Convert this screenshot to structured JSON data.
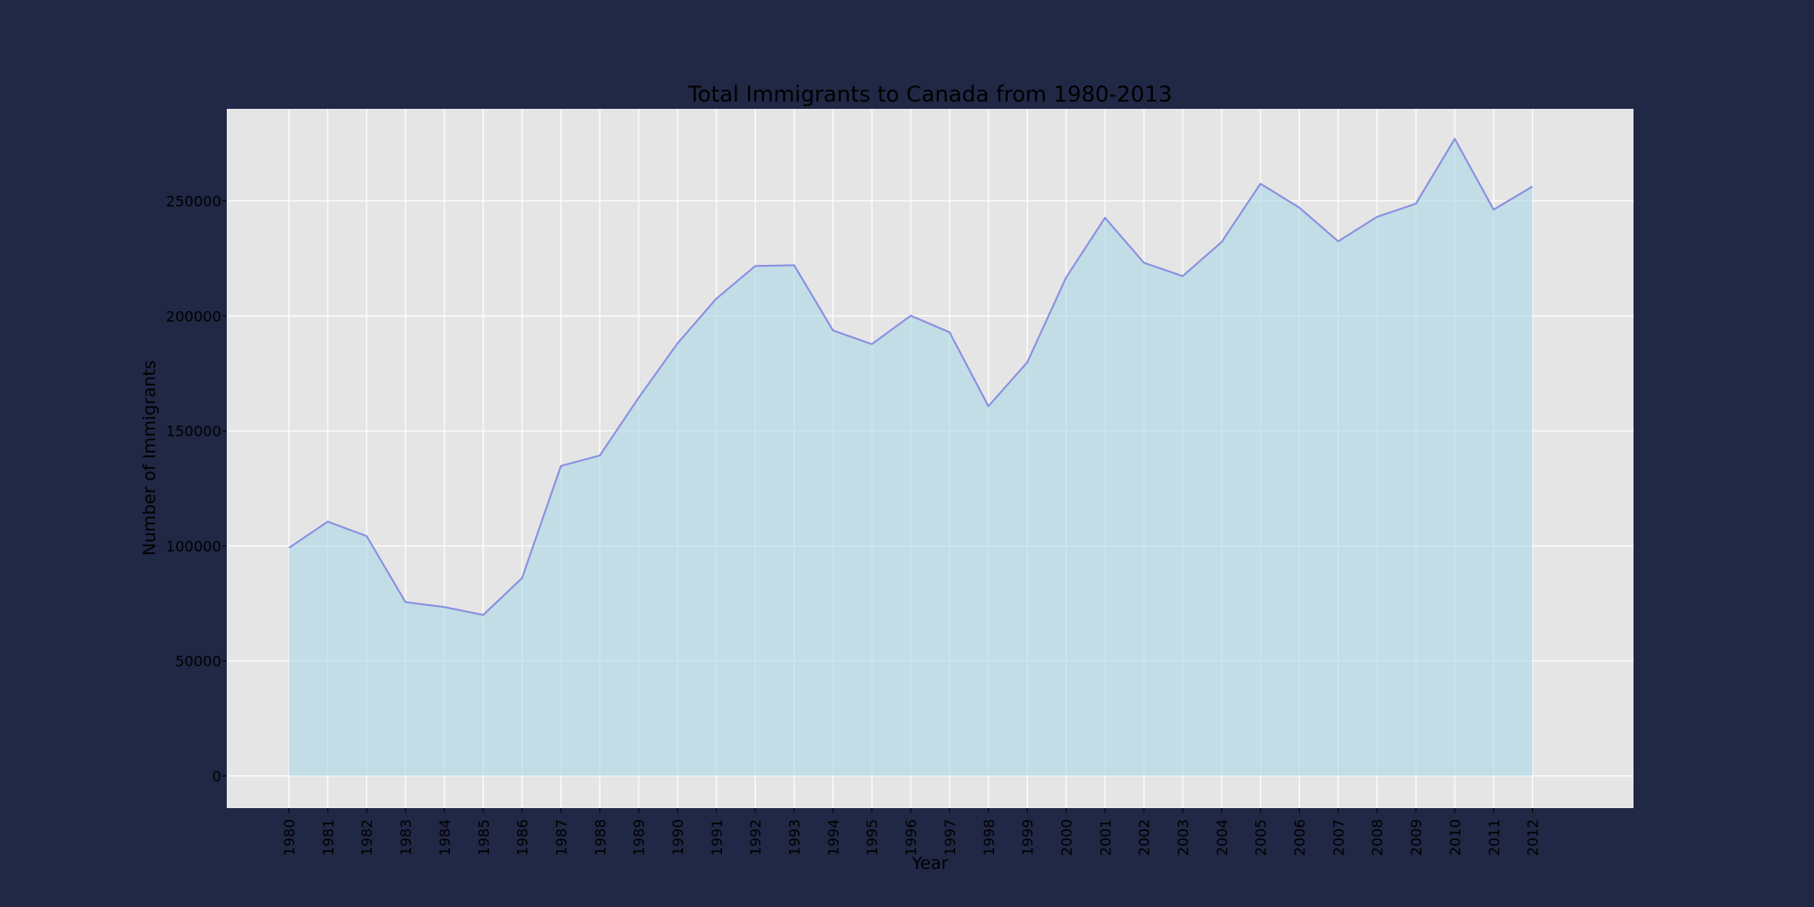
{
  "chart_data": {
    "type": "area",
    "title": "Total Immigrants to Canada from 1980-2013",
    "xlabel": "Year",
    "ylabel": "Number of Immigrants",
    "x": [
      1980,
      1981,
      1982,
      1983,
      1984,
      1985,
      1986,
      1987,
      1988,
      1989,
      1990,
      1991,
      1992,
      1993,
      1994,
      1995,
      1996,
      1997,
      1998,
      1999,
      2000,
      2001,
      2002,
      2003,
      2004,
      2005,
      2006,
      2007,
      2008,
      2009,
      2010,
      2011,
      2012
    ],
    "values": [
      99137,
      110563,
      104271,
      75550,
      73417,
      69978,
      86048,
      134771,
      139306,
      164432,
      188054,
      207509,
      221687,
      222049,
      193665,
      187712,
      200085,
      192885,
      160727,
      179818,
      216712,
      242643,
      223111,
      217297,
      232083,
      257457,
      247057,
      232405,
      243047,
      248768,
      276956,
      246194,
      256222
    ],
    "xlim": [
      1978.4,
      2014.6
    ],
    "ylim": [
      -14000,
      290000
    ],
    "y_ticks": [
      0,
      50000,
      100000,
      150000,
      200000,
      250000
    ],
    "grid": true,
    "colors": {
      "page_background": "#212845",
      "plot_background": "#e5e5e5",
      "grid": "#ffffff",
      "area_fill": "#add8e6",
      "line": "#8a8fe0"
    }
  }
}
